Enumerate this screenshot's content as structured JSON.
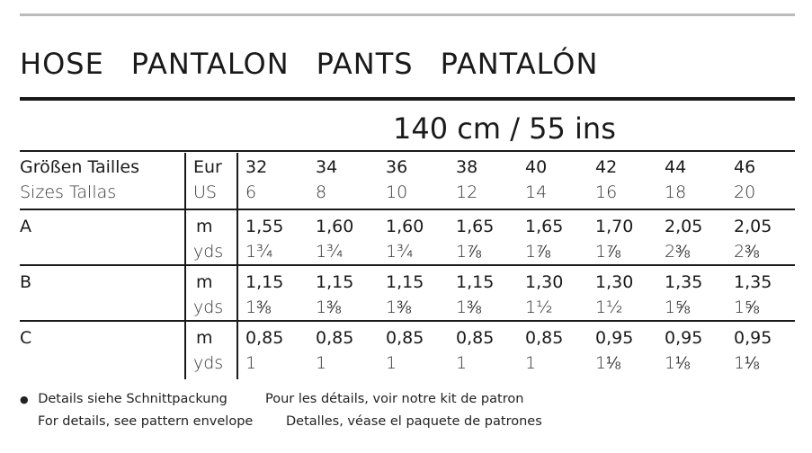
{
  "title_words": [
    "HOSE",
    "PANTALON",
    "PANTS",
    "PANTALÓN"
  ],
  "fabric_width": "140 cm / 55 ins",
  "header": {
    "label_line1": "Größen Tailles",
    "label_line2": "Sizes Tallas",
    "unit_eur": "Eur",
    "unit_us": "US",
    "eur_sizes": [
      "32",
      "34",
      "36",
      "38",
      "40",
      "42",
      "44",
      "46"
    ],
    "us_sizes": [
      "6",
      "8",
      "10",
      "12",
      "14",
      "16",
      "18",
      "20"
    ]
  },
  "views": [
    {
      "label": "A",
      "m_unit": "m",
      "yds_unit": "yds",
      "m": [
        "1,55",
        "1,60",
        "1,60",
        "1,65",
        "1,65",
        "1,70",
        "2,05",
        "2,05"
      ],
      "yds": [
        "1¾",
        "1¾",
        "1¾",
        "1⅞",
        "1⅞",
        "1⅞",
        "2⅜",
        "2⅜"
      ]
    },
    {
      "label": "B",
      "m_unit": "m",
      "yds_unit": "yds",
      "m": [
        "1,15",
        "1,15",
        "1,15",
        "1,15",
        "1,30",
        "1,30",
        "1,35",
        "1,35"
      ],
      "yds": [
        "1⅜",
        "1⅜",
        "1⅜",
        "1⅜",
        "1½",
        "1½",
        "1⅝",
        "1⅝"
      ]
    },
    {
      "label": "C",
      "m_unit": "m",
      "yds_unit": "yds",
      "m": [
        "0,85",
        "0,85",
        "0,85",
        "0,85",
        "0,85",
        "0,95",
        "0,95",
        "0,95"
      ],
      "yds": [
        "1",
        "1",
        "1",
        "1",
        "1",
        "1⅛",
        "1⅛",
        "1⅛"
      ]
    }
  ],
  "footer": {
    "bullet": "●",
    "de": "Details siehe Schnittpackung",
    "fr": "Pour les détails, voir notre kit de patron",
    "en": "For details, see pattern envelope",
    "es": "Detalles, véase el paquete de patrones"
  }
}
